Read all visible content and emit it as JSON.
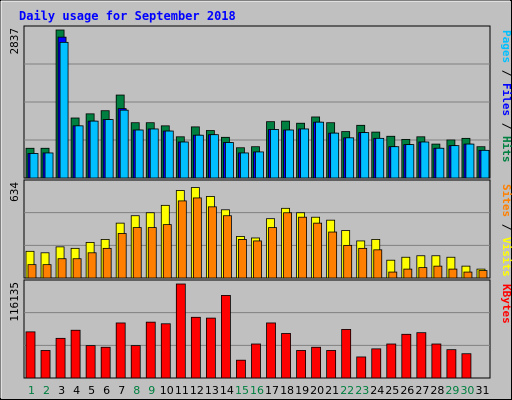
{
  "chart_data": [
    {
      "type": "bar",
      "title": "Daily usage for September 2018",
      "ylabel_parts": [
        {
          "text": "Pages",
          "color": "#00c0ff"
        },
        {
          "text": " / ",
          "color": "#000000"
        },
        {
          "text": "Files",
          "color": "#0000ff"
        },
        {
          "text": " / ",
          "color": "#000000"
        },
        {
          "text": "Hits",
          "color": "#008040"
        }
      ],
      "ymax_label": "2837",
      "ylim": [
        0,
        2837
      ],
      "categories": [
        "1",
        "2",
        "3",
        "4",
        "5",
        "6",
        "7",
        "8",
        "9",
        "10",
        "11",
        "12",
        "13",
        "14",
        "15",
        "16",
        "17",
        "18",
        "19",
        "20",
        "21",
        "22",
        "23",
        "24",
        "25",
        "26",
        "27",
        "28",
        "29",
        "30",
        "31"
      ],
      "weekend_days": [
        "1",
        "2",
        "8",
        "9",
        "15",
        "16",
        "22",
        "23",
        "29",
        "30"
      ],
      "series": [
        {
          "name": "Hits",
          "color": "#008040",
          "values": [
            570,
            570,
            2837,
            1150,
            1230,
            1290,
            1590,
            1060,
            1060,
            1000,
            790,
            980,
            910,
            780,
            580,
            600,
            1080,
            1090,
            1050,
            1170,
            1060,
            890,
            1010,
            880,
            800,
            740,
            790,
            650,
            730,
            760,
            600
          ]
        },
        {
          "name": "Files",
          "color": "#0000ff",
          "values": [
            470,
            480,
            2700,
            1000,
            1090,
            1120,
            1330,
            920,
            940,
            900,
            690,
            820,
            830,
            680,
            480,
            500,
            930,
            920,
            940,
            1070,
            860,
            770,
            870,
            760,
            600,
            640,
            690,
            570,
            620,
            650,
            530
          ]
        },
        {
          "name": "Pages",
          "color": "#00c0ff",
          "values": [
            470,
            480,
            2600,
            1000,
            1090,
            1120,
            1300,
            920,
            940,
            900,
            690,
            820,
            830,
            680,
            480,
            500,
            930,
            920,
            940,
            1070,
            860,
            770,
            870,
            760,
            600,
            640,
            690,
            570,
            620,
            650,
            530
          ]
        }
      ],
      "values_note": ""
    },
    {
      "type": "bar",
      "ylabel_parts": [
        {
          "text": "Sites",
          "color": "#ff8000"
        },
        {
          "text": " / ",
          "color": "#000000"
        },
        {
          "text": "Visits",
          "color": "#ffff00"
        }
      ],
      "ymax_label": "634",
      "ylim": [
        0,
        634
      ],
      "series": [
        {
          "name": "Visits",
          "color": "#ffff00",
          "values": [
            180,
            170,
            210,
            200,
            240,
            260,
            370,
            420,
            440,
            490,
            590,
            610,
            550,
            460,
            280,
            270,
            400,
            470,
            440,
            410,
            390,
            320,
            250,
            260,
            120,
            140,
            150,
            150,
            140,
            80,
            60
          ]
        },
        {
          "name": "Sites",
          "color": "#ff8000",
          "values": [
            90,
            90,
            130,
            130,
            170,
            200,
            300,
            340,
            340,
            360,
            520,
            540,
            480,
            420,
            260,
            250,
            340,
            440,
            410,
            370,
            310,
            220,
            200,
            190,
            40,
            60,
            70,
            80,
            60,
            40,
            50
          ]
        }
      ]
    },
    {
      "type": "bar",
      "ylabel_parts": [
        {
          "text": "KBytes",
          "color": "#ff0000"
        }
      ],
      "ymax_label": "116135",
      "ylim": [
        0,
        116135
      ],
      "series": [
        {
          "name": "KBytes",
          "color": "#ff0000",
          "values": [
            57000,
            34000,
            49000,
            59000,
            40000,
            38000,
            68000,
            40000,
            69000,
            67000,
            116135,
            75000,
            74000,
            102000,
            22000,
            42000,
            68000,
            55000,
            34000,
            38000,
            34000,
            60000,
            26000,
            36000,
            42000,
            54000,
            56000,
            42000,
            35000,
            30000,
            0
          ]
        }
      ]
    }
  ]
}
